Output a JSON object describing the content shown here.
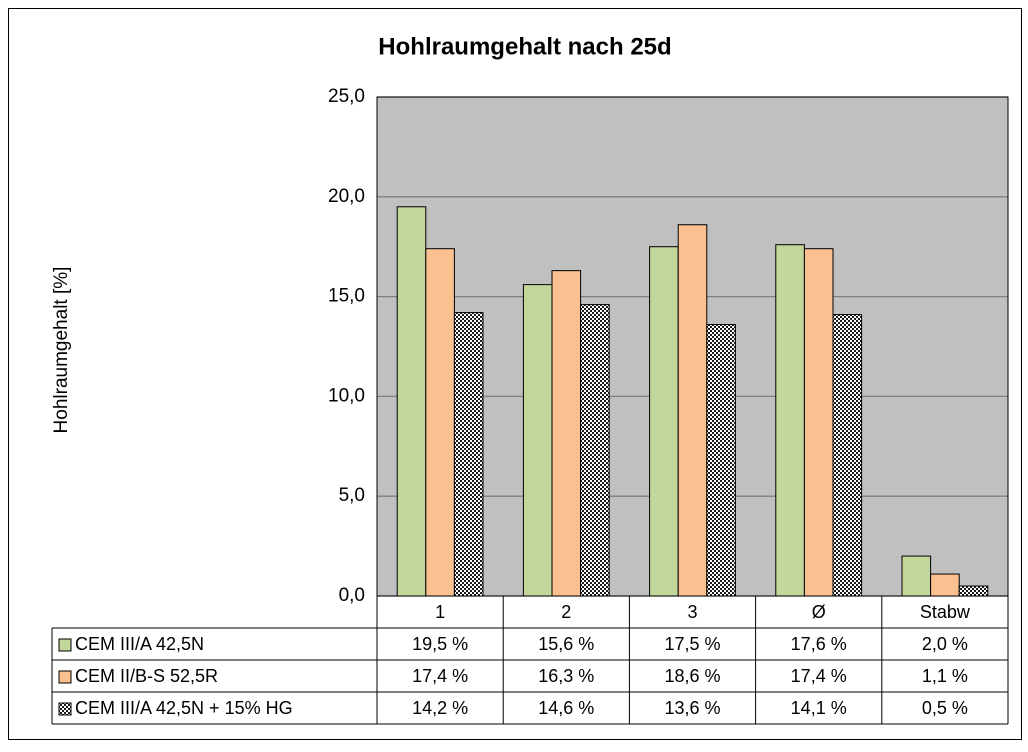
{
  "chart_data": {
    "type": "bar",
    "title": "Hohlraumgehalt nach 25d",
    "y_label": "Hohlraumgehalt [%]",
    "categories": [
      "1",
      "2",
      "3",
      "Ø",
      "Stabw"
    ],
    "series": [
      {
        "name": "CEM III/A 42,5N",
        "color": "#c3d69b",
        "values": [
          19.5,
          15.6,
          17.5,
          17.6,
          2.0
        ],
        "value_labels": [
          "19,5 %",
          "15,6 %",
          "17,5 %",
          "17,6 %",
          "2,0 %"
        ]
      },
      {
        "name": "CEM II/B-S 52,5R",
        "color": "#fac090",
        "values": [
          17.4,
          16.3,
          18.6,
          17.4,
          1.1
        ],
        "value_labels": [
          "17,4 %",
          "16,3 %",
          "18,6 %",
          "17,4 %",
          "1,1 %"
        ]
      },
      {
        "name": "CEM III/A 42,5N + 15% HG",
        "color": "#4f6228",
        "pattern": "checker",
        "values": [
          14.2,
          14.6,
          13.6,
          14.1,
          0.5
        ],
        "value_labels": [
          "14,2 %",
          "14,6 %",
          "13,6 %",
          "14,1 %",
          "0,5 %"
        ]
      }
    ],
    "ylim": [
      0,
      25
    ],
    "yticks": [
      {
        "value": 0,
        "label": "0,0"
      },
      {
        "value": 5,
        "label": "5,0"
      },
      {
        "value": 10,
        "label": "10,0"
      },
      {
        "value": 15,
        "label": "15,0"
      },
      {
        "value": 20,
        "label": "20,0"
      },
      {
        "value": 25,
        "label": "25,0"
      }
    ],
    "grid": true,
    "plot_background": "#c0c0c0"
  }
}
